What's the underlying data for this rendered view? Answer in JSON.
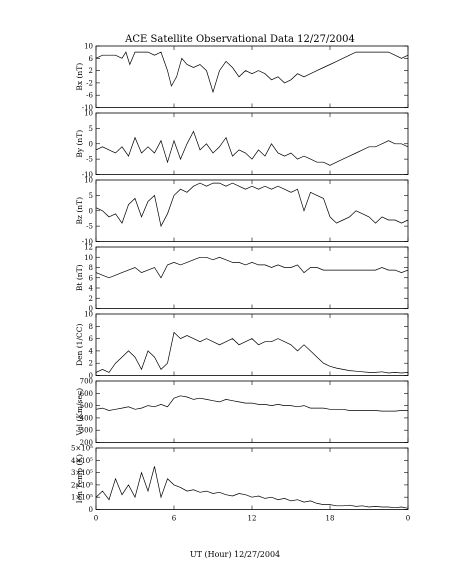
{
  "chart_data": {
    "type": "line",
    "title": "ACE Satellite Observational Data   12/27/2004",
    "xlabel": "UT (Hour)   12/27/2004",
    "x_ticks": [
      "0",
      "6",
      "12",
      "18",
      "0"
    ],
    "xlim": [
      0,
      24
    ],
    "grid": false,
    "panels": [
      {
        "ylabel": "Bx (nT)",
        "ylim": [
          -10,
          10
        ],
        "yticks": [
          "10",
          "6",
          "2",
          "-2",
          "-6",
          "-10"
        ],
        "ytick_values": [
          10,
          6,
          2,
          -2,
          -6,
          -10
        ],
        "x": [
          0,
          0.5,
          1,
          1.5,
          2,
          2.3,
          2.6,
          3,
          3.5,
          4,
          4.5,
          5,
          5.5,
          5.8,
          6.2,
          6.6,
          7,
          7.5,
          8,
          8.5,
          9,
          9.5,
          10,
          10.5,
          11,
          11.5,
          12,
          12.5,
          13,
          13.5,
          14,
          14.5,
          15,
          15.5,
          16,
          16.5,
          17,
          17.5,
          18,
          18.5,
          19,
          19.5,
          20,
          20.5,
          21,
          21.5,
          22,
          22.5,
          23,
          23.5,
          24
        ],
        "values": [
          6,
          7,
          7,
          7,
          6,
          8,
          4,
          8,
          8,
          8,
          7,
          8,
          2,
          -3,
          0,
          6,
          4,
          3,
          4,
          2,
          -5,
          2,
          5,
          3,
          0,
          2,
          1,
          2,
          1,
          -1,
          0,
          -2,
          -1,
          1,
          0,
          1,
          2,
          3,
          4,
          5,
          6,
          7,
          8,
          8,
          8,
          8,
          8,
          8,
          7,
          6,
          7
        ]
      },
      {
        "ylabel": "By (nT)",
        "ylim": [
          -10,
          10
        ],
        "yticks": [
          "10",
          "5",
          "0",
          "-5",
          "-10"
        ],
        "ytick_values": [
          10,
          5,
          0,
          -5,
          -10
        ],
        "x": [
          0,
          0.5,
          1,
          1.5,
          2,
          2.5,
          3,
          3.5,
          4,
          4.5,
          5,
          5.5,
          6,
          6.5,
          7,
          7.5,
          8,
          8.5,
          9,
          9.5,
          10,
          10.5,
          11,
          11.5,
          12,
          12.5,
          13,
          13.5,
          14,
          14.5,
          15,
          15.5,
          16,
          16.5,
          17,
          17.5,
          18,
          18.5,
          19,
          19.5,
          20,
          20.5,
          21,
          21.5,
          22,
          22.5,
          23,
          23.5,
          24
        ],
        "values": [
          -2,
          -1,
          -2,
          -3,
          -1,
          -4,
          2,
          -3,
          -1,
          -3,
          1,
          -6,
          1,
          -5,
          0,
          4,
          -2,
          0,
          -3,
          -1,
          2,
          -4,
          -2,
          -3,
          -5,
          -2,
          -4,
          0,
          -3,
          -4,
          -3,
          -5,
          -4,
          -5,
          -6,
          -6,
          -7,
          -6,
          -5,
          -4,
          -3,
          -2,
          -1,
          -1,
          0,
          1,
          0,
          0,
          -1
        ]
      },
      {
        "ylabel": "Bz (nT)",
        "ylim": [
          -10,
          10
        ],
        "yticks": [
          "10",
          "5",
          "0",
          "-5",
          "-10"
        ],
        "ytick_values": [
          10,
          5,
          0,
          -5,
          -10
        ],
        "x": [
          0,
          0.5,
          1,
          1.5,
          2,
          2.5,
          3,
          3.5,
          4,
          4.5,
          5,
          5.5,
          6,
          6.5,
          7,
          7.5,
          8,
          8.5,
          9,
          9.5,
          10,
          10.5,
          11,
          11.5,
          12,
          12.5,
          13,
          13.5,
          14,
          14.5,
          15,
          15.5,
          16,
          16.5,
          17,
          17.5,
          18,
          18.5,
          19,
          19.5,
          20,
          20.5,
          21,
          21.5,
          22,
          22.5,
          23,
          23.5,
          24
        ],
        "values": [
          1,
          0,
          -2,
          -1,
          -4,
          2,
          4,
          -2,
          3,
          5,
          -5,
          -1,
          5,
          7,
          6,
          8,
          9,
          8,
          9,
          9,
          8,
          9,
          8,
          7,
          8,
          7,
          8,
          7,
          8,
          7,
          6,
          7,
          0,
          6,
          5,
          4,
          -2,
          -4,
          -3,
          -2,
          0,
          -1,
          -2,
          -4,
          -2,
          -3,
          -3,
          -4,
          -3
        ]
      },
      {
        "ylabel": "Bt (nT)",
        "ylim": [
          0,
          12
        ],
        "yticks": [
          "12",
          "10",
          "8",
          "6",
          "4",
          "2",
          "0"
        ],
        "ytick_values": [
          12,
          10,
          8,
          6,
          4,
          2,
          0
        ],
        "x": [
          0,
          0.5,
          1,
          1.5,
          2,
          2.5,
          3,
          3.5,
          4,
          4.5,
          5,
          5.5,
          6,
          6.5,
          7,
          7.5,
          8,
          8.5,
          9,
          9.5,
          10,
          10.5,
          11,
          11.5,
          12,
          12.5,
          13,
          13.5,
          14,
          14.5,
          15,
          15.5,
          16,
          16.5,
          17,
          17.5,
          18,
          18.5,
          19,
          19.5,
          20,
          20.5,
          21,
          21.5,
          22,
          22.5,
          23,
          23.5,
          24
        ],
        "values": [
          7,
          6.5,
          6,
          6.5,
          7,
          7.5,
          8,
          7,
          7.5,
          8,
          6,
          8.5,
          9,
          8.5,
          9,
          9.5,
          10,
          10,
          9.5,
          10,
          9.5,
          9,
          9,
          8.5,
          9,
          8.5,
          8.5,
          8,
          8.5,
          8,
          8,
          8.5,
          7,
          8,
          8,
          7.5,
          7.5,
          7.5,
          7.5,
          7.5,
          7.5,
          7.5,
          7.5,
          7.5,
          8,
          7.5,
          7.5,
          7,
          7.5
        ]
      },
      {
        "ylabel": "Den (1/CC)",
        "ylim": [
          0,
          10
        ],
        "yticks": [
          "10",
          "8",
          "6",
          "4",
          "2",
          "0"
        ],
        "ytick_values": [
          10,
          8,
          6,
          4,
          2,
          0
        ],
        "x": [
          0,
          0.5,
          1,
          1.5,
          2,
          2.5,
          3,
          3.5,
          4,
          4.5,
          5,
          5.5,
          6,
          6.5,
          7,
          7.5,
          8,
          8.5,
          9,
          9.5,
          10,
          10.5,
          11,
          11.5,
          12,
          12.5,
          13,
          13.5,
          14,
          14.5,
          15,
          15.5,
          16,
          16.5,
          17,
          17.5,
          18,
          18.5,
          19,
          19.5,
          20,
          20.5,
          21,
          21.5,
          22,
          22.5,
          23,
          23.5,
          24
        ],
        "values": [
          0.5,
          1,
          0.5,
          2,
          3,
          4,
          3,
          1,
          4,
          3,
          1,
          2,
          7,
          6,
          6.5,
          6,
          5.5,
          6,
          5.5,
          5,
          5.5,
          6,
          5,
          5.5,
          6,
          5,
          5.5,
          5.5,
          6,
          5.5,
          5,
          4,
          5,
          4,
          3,
          2,
          1.5,
          1.2,
          1,
          0.8,
          0.7,
          0.6,
          0.5,
          0.5,
          0.6,
          0.4,
          0.5,
          0.4,
          0.5
        ]
      },
      {
        "ylabel": "Vel (Km/sec)",
        "ylim": [
          200,
          700
        ],
        "yticks": [
          "700",
          "600",
          "500",
          "400",
          "300",
          "200"
        ],
        "ytick_values": [
          700,
          600,
          500,
          400,
          300,
          200
        ],
        "x": [
          0,
          0.5,
          1,
          1.5,
          2,
          2.5,
          3,
          3.5,
          4,
          4.5,
          5,
          5.5,
          6,
          6.5,
          7,
          7.5,
          8,
          8.5,
          9,
          9.5,
          10,
          10.5,
          11,
          11.5,
          12,
          12.5,
          13,
          13.5,
          14,
          14.5,
          15,
          15.5,
          16,
          16.5,
          17,
          17.5,
          18,
          18.5,
          19,
          19.5,
          20,
          20.5,
          21,
          21.5,
          22,
          22.5,
          23,
          23.5,
          24
        ],
        "values": [
          470,
          480,
          460,
          470,
          480,
          490,
          470,
          480,
          500,
          490,
          510,
          490,
          560,
          580,
          570,
          550,
          560,
          550,
          540,
          530,
          550,
          540,
          530,
          520,
          520,
          510,
          510,
          500,
          510,
          500,
          500,
          490,
          500,
          480,
          480,
          480,
          470,
          470,
          470,
          460,
          460,
          460,
          460,
          460,
          455,
          455,
          455,
          460,
          460
        ]
      },
      {
        "ylabel": "Ion Temp (K)",
        "ylim": [
          0,
          500000
        ],
        "yticks": [
          "5×10⁵",
          "4×10⁵",
          "3×10⁵",
          "2×10⁵",
          "1×10⁵",
          "0"
        ],
        "ytick_values": [
          500000,
          400000,
          300000,
          200000,
          100000,
          0
        ],
        "x": [
          0,
          0.5,
          1,
          1.5,
          2,
          2.5,
          3,
          3.5,
          4,
          4.5,
          5,
          5.5,
          6,
          6.5,
          7,
          7.5,
          8,
          8.5,
          9,
          9.5,
          10,
          10.5,
          11,
          11.5,
          12,
          12.5,
          13,
          13.5,
          14,
          14.5,
          15,
          15.5,
          16,
          16.5,
          17,
          17.5,
          18,
          18.5,
          19,
          19.5,
          20,
          20.5,
          21,
          21.5,
          22,
          22.5,
          23,
          23.5,
          24
        ],
        "values": [
          100000,
          150000,
          80000,
          250000,
          120000,
          200000,
          100000,
          300000,
          150000,
          350000,
          100000,
          250000,
          200000,
          180000,
          150000,
          160000,
          140000,
          150000,
          130000,
          140000,
          120000,
          110000,
          130000,
          120000,
          100000,
          110000,
          90000,
          100000,
          80000,
          90000,
          70000,
          80000,
          60000,
          70000,
          50000,
          40000,
          40000,
          30000,
          30000,
          35000,
          25000,
          30000,
          20000,
          25000,
          20000,
          20000,
          15000,
          20000,
          10000
        ]
      }
    ]
  }
}
